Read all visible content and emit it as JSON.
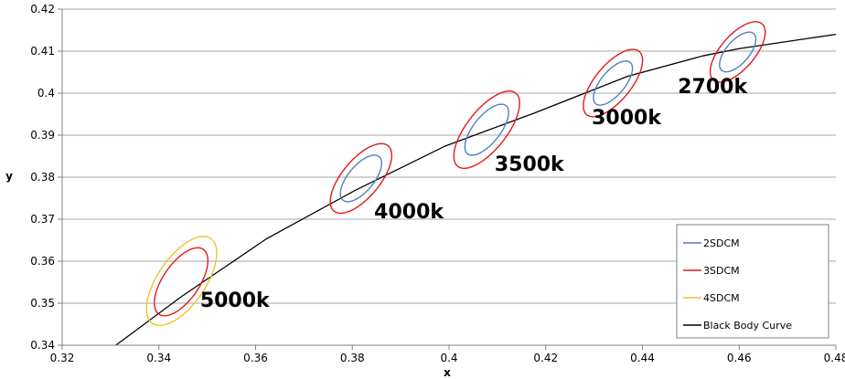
{
  "chart_data": {
    "type": "scatter",
    "title": "",
    "xlabel": "x",
    "ylabel": "y",
    "xlim": [
      0.32,
      0.48
    ],
    "ylim": [
      0.34,
      0.42
    ],
    "xticks": [
      0.32,
      0.34,
      0.36,
      0.38,
      0.4,
      0.42,
      0.44,
      0.46,
      0.48
    ],
    "xtick_labels": [
      "0.32",
      "0.34",
      "0.36",
      "0.38",
      "0.4",
      "0.42",
      "0.44",
      "0.46",
      "0.48"
    ],
    "yticks": [
      0.34,
      0.35,
      0.36,
      0.37,
      0.38,
      0.39,
      0.4,
      0.41,
      0.42
    ],
    "ytick_labels": [
      "0.34",
      "0.35",
      "0.36",
      "0.37",
      "0.38",
      "0.39",
      "0.4",
      "0.41",
      "0.42"
    ],
    "grid": "horizontal",
    "legend_position": "bottom-right",
    "series": [
      {
        "name": "2SDCM",
        "color": "#4f81bd",
        "ellipses": [
          {
            "cx": 0.4597,
            "cy": 0.4098,
            "a": 0.0055,
            "b": 0.0025,
            "angle_deg": 55
          },
          {
            "cx": 0.4339,
            "cy": 0.4024,
            "a": 0.0061,
            "b": 0.0026,
            "angle_deg": 56
          },
          {
            "cx": 0.4078,
            "cy": 0.3913,
            "a": 0.007,
            "b": 0.0029,
            "angle_deg": 57
          },
          {
            "cx": 0.3818,
            "cy": 0.3797,
            "a": 0.0064,
            "b": 0.0028,
            "angle_deg": 56
          }
        ]
      },
      {
        "name": "3SDCM",
        "color": "#e41a1c",
        "ellipses": [
          {
            "cx": 0.4597,
            "cy": 0.4098,
            "a": 0.0084,
            "b": 0.0037,
            "angle_deg": 55
          },
          {
            "cx": 0.4339,
            "cy": 0.4024,
            "a": 0.0093,
            "b": 0.0039,
            "angle_deg": 56
          },
          {
            "cx": 0.4078,
            "cy": 0.3913,
            "a": 0.0106,
            "b": 0.0043,
            "angle_deg": 57
          },
          {
            "cx": 0.3818,
            "cy": 0.3797,
            "a": 0.0096,
            "b": 0.0041,
            "angle_deg": 56
          },
          {
            "cx": 0.3446,
            "cy": 0.3551,
            "a": 0.009,
            "b": 0.0039,
            "angle_deg": 61
          }
        ]
      },
      {
        "name": "4SDCM",
        "color": "#f2c12e",
        "ellipses": [
          {
            "cx": 0.3447,
            "cy": 0.3553,
            "a": 0.0118,
            "b": 0.0051,
            "angle_deg": 61
          }
        ]
      },
      {
        "name": "Black Body Curve",
        "color": "#000000",
        "x": [
          0.3311,
          0.3447,
          0.3622,
          0.3805,
          0.3992,
          0.4175,
          0.4369,
          0.4526,
          0.46,
          0.48
        ],
        "y": [
          0.34,
          0.3516,
          0.3653,
          0.3768,
          0.3874,
          0.3952,
          0.404,
          0.4089,
          0.4106,
          0.414
        ]
      }
    ],
    "annotations": [
      {
        "text": "2700k",
        "x": 0.4545,
        "y": 0.4
      },
      {
        "text": "3000k",
        "x": 0.4367,
        "y": 0.3926
      },
      {
        "text": "3500k",
        "x": 0.4166,
        "y": 0.3815
      },
      {
        "text": "4000k",
        "x": 0.3917,
        "y": 0.3702
      },
      {
        "text": "5000k",
        "x": 0.3557,
        "y": 0.3491
      }
    ]
  }
}
